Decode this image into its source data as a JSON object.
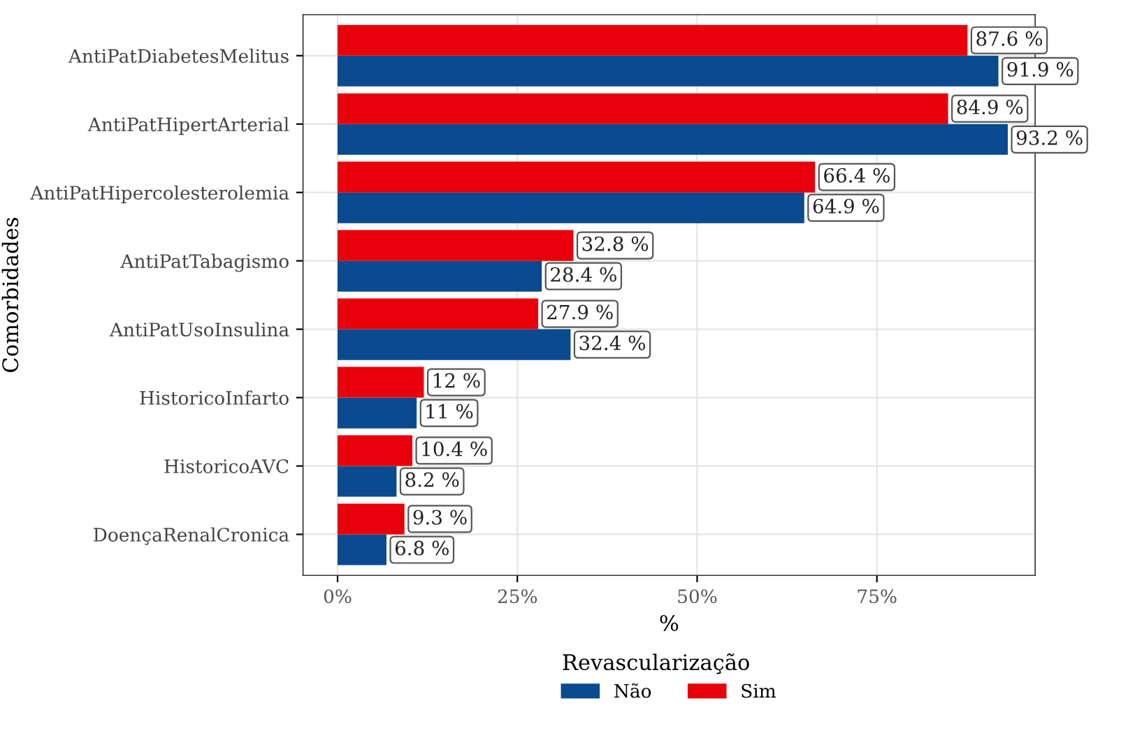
{
  "chart_data": {
    "type": "bar",
    "orientation": "horizontal",
    "xlabel": "%",
    "ylabel": "Comorbidades",
    "legend_title": "Revascularização",
    "legend": "bottom",
    "grid": true,
    "categories": [
      "AntiPatDiabetesMelitus",
      "AntiPatHipertArterial",
      "AntiPatHipercolesterolemia",
      "AntiPatTabagismo",
      "AntiPatUsoInsulina",
      "HistoricoInfarto",
      "HistoricoAVC",
      "DoençaRenalCronica"
    ],
    "series": [
      {
        "name": "Não",
        "color": "#0a4a8f",
        "values": [
          91.9,
          93.2,
          64.9,
          28.4,
          32.4,
          11,
          8.2,
          6.8
        ],
        "value_labels": [
          "91.9 %",
          "93.2 %",
          "64.9 %",
          "28.4 %",
          "32.4 %",
          "11 %",
          "8.2 %",
          "6.8 %"
        ]
      },
      {
        "name": "Sim",
        "color": "#e8000b",
        "values": [
          87.6,
          84.9,
          66.4,
          32.8,
          27.9,
          12,
          10.4,
          9.3
        ],
        "value_labels": [
          "87.6 %",
          "84.9 %",
          "66.4 %",
          "32.8 %",
          "27.9 %",
          "12 %",
          "10.4 %",
          "9.3 %"
        ]
      }
    ],
    "xlim": [
      -4.8,
      97
    ],
    "xticks": [
      {
        "value": 0,
        "label": "0%"
      },
      {
        "value": 25,
        "label": "25%"
      },
      {
        "value": 50,
        "label": "50%"
      },
      {
        "value": 75,
        "label": "75%"
      }
    ]
  }
}
